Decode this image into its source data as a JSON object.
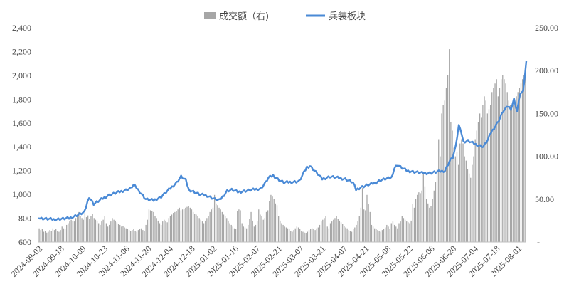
{
  "chart_data": {
    "type": "bar+line",
    "legend": {
      "placement": "top-center",
      "items": [
        {
          "label": "成交额（右)",
          "kind": "bar",
          "color": "#a6a6a6"
        },
        {
          "label": "兵装板块",
          "kind": "line",
          "color": "#4a8ad6"
        }
      ]
    },
    "x_ticks": [
      "2024-09-02",
      "2024-09-18",
      "2024-10-09",
      "2024-10-23",
      "2024-11-06",
      "2024-11-20",
      "2024-12-04",
      "2024-12-18",
      "2025-01-02",
      "2025-01-16",
      "2025-02-07",
      "2025-02-21",
      "2025-03-07",
      "2025-03-21",
      "2025-04-07",
      "2025-04-21",
      "2025-05-08",
      "2025-05-22",
      "2025-06-06",
      "2025-06-20",
      "2025-07-04",
      "2025-07-18",
      "2025-08-01"
    ],
    "y_left": {
      "ticks": [
        "600",
        "800",
        "1,000",
        "1,200",
        "1,400",
        "1,600",
        "1,800",
        "2,000",
        "2,200",
        "2,400"
      ],
      "ylim": [
        600,
        2400
      ]
    },
    "y_right": {
      "ticks": [
        "-",
        "50.00",
        "100.00",
        "150.00",
        "200.00",
        "250.00"
      ],
      "ylim": [
        0,
        250
      ]
    },
    "grid": false,
    "line_series": {
      "name": "兵装板块",
      "anchors": [
        [
          0,
          800
        ],
        [
          10,
          790
        ],
        [
          20,
          800
        ],
        [
          30,
          850
        ],
        [
          33,
          980
        ],
        [
          36,
          920
        ],
        [
          40,
          950
        ],
        [
          45,
          990
        ],
        [
          50,
          1010
        ],
        [
          55,
          1030
        ],
        [
          60,
          1050
        ],
        [
          62,
          1080
        ],
        [
          65,
          1040
        ],
        [
          70,
          960
        ],
        [
          75,
          950
        ],
        [
          80,
          980
        ],
        [
          85,
          1040
        ],
        [
          90,
          1100
        ],
        [
          93,
          1150
        ],
        [
          96,
          1120
        ],
        [
          98,
          1040
        ],
        [
          100,
          1030
        ],
        [
          105,
          1000
        ],
        [
          110,
          990
        ],
        [
          115,
          960
        ],
        [
          118,
          950
        ],
        [
          120,
          980
        ],
        [
          123,
          1030
        ],
        [
          126,
          1040
        ],
        [
          130,
          1020
        ],
        [
          135,
          1030
        ],
        [
          140,
          1040
        ],
        [
          145,
          1050
        ],
        [
          148,
          1100
        ],
        [
          150,
          1140
        ],
        [
          153,
          1160
        ],
        [
          157,
          1120
        ],
        [
          160,
          1100
        ],
        [
          170,
          1110
        ],
        [
          175,
          1230
        ],
        [
          177,
          1240
        ],
        [
          180,
          1200
        ],
        [
          185,
          1130
        ],
        [
          190,
          1150
        ],
        [
          195,
          1140
        ],
        [
          200,
          1130
        ],
        [
          205,
          1100
        ],
        [
          207,
          1040
        ],
        [
          210,
          1060
        ],
        [
          215,
          1080
        ],
        [
          220,
          1100
        ],
        [
          223,
          1120
        ],
        [
          226,
          1130
        ],
        [
          230,
          1140
        ],
        [
          232,
          1220
        ],
        [
          234,
          1250
        ],
        [
          236,
          1230
        ],
        [
          240,
          1200
        ],
        [
          245,
          1190
        ],
        [
          250,
          1180
        ],
        [
          255,
          1180
        ],
        [
          260,
          1190
        ],
        [
          265,
          1200
        ],
        [
          268,
          1280
        ],
        [
          270,
          1310
        ],
        [
          272,
          1400
        ],
        [
          274,
          1580
        ],
        [
          275,
          1560
        ],
        [
          277,
          1440
        ],
        [
          280,
          1450
        ],
        [
          285,
          1420
        ],
        [
          290,
          1400
        ],
        [
          293,
          1460
        ],
        [
          295,
          1520
        ],
        [
          297,
          1560
        ],
        [
          300,
          1620
        ],
        [
          303,
          1700
        ],
        [
          306,
          1740
        ],
        [
          308,
          1720
        ],
        [
          310,
          1800
        ],
        [
          312,
          1700
        ],
        [
          314,
          1850
        ],
        [
          316,
          1860
        ],
        [
          318,
          2120
        ]
      ]
    },
    "bar_series": {
      "name": "成交额（右)",
      "values": [
        16,
        14,
        15,
        12,
        13,
        11,
        12,
        14,
        13,
        16,
        14,
        15,
        13,
        12,
        14,
        18,
        16,
        15,
        20,
        22,
        24,
        26,
        25,
        24,
        28,
        32,
        35,
        30,
        28,
        26,
        34,
        29,
        31,
        27,
        30,
        33,
        28,
        26,
        25,
        22,
        20,
        24,
        26,
        30,
        22,
        18,
        20,
        24,
        28,
        26,
        25,
        23,
        21,
        20,
        18,
        19,
        17,
        16,
        15,
        14,
        13,
        14,
        15,
        13,
        12,
        14,
        15,
        16,
        14,
        13,
        20,
        26,
        38,
        37,
        36,
        35,
        30,
        28,
        25,
        22,
        20,
        24,
        26,
        25,
        23,
        28,
        30,
        32,
        34,
        35,
        36,
        38,
        40,
        37,
        38,
        39,
        40,
        41,
        42,
        40,
        38,
        35,
        33,
        32,
        30,
        28,
        26,
        24,
        22,
        25,
        28,
        30,
        35,
        38,
        40,
        55,
        45,
        43,
        40,
        38,
        35,
        32,
        30,
        28,
        25,
        22,
        20,
        18,
        16,
        15,
        36,
        38,
        37,
        22,
        18,
        17,
        16,
        20,
        27,
        35,
        25,
        18,
        20,
        24,
        38,
        32,
        30,
        26,
        28,
        35,
        37,
        48,
        55,
        53,
        50,
        45,
        43,
        30,
        25,
        22,
        20,
        18,
        17,
        16,
        15,
        13,
        12,
        14,
        16,
        18,
        17,
        15,
        13,
        12,
        11,
        10,
        12,
        14,
        15,
        16,
        15,
        14,
        16,
        17,
        20,
        24,
        26,
        28,
        30,
        18,
        16,
        22,
        24,
        26,
        28,
        30,
        27,
        25,
        23,
        21,
        19,
        17,
        16,
        14,
        13,
        12,
        15,
        17,
        20,
        24,
        30,
        40,
        63,
        38,
        37,
        55,
        44,
        35,
        20,
        18,
        16,
        15,
        14,
        13,
        12,
        14,
        15,
        17,
        20,
        18,
        15,
        22,
        24,
        20,
        18,
        16,
        22,
        24,
        30,
        28,
        26,
        24,
        23,
        22,
        25,
        44,
        40,
        50,
        55,
        58,
        57,
        60,
        80,
        65,
        50,
        45,
        40,
        42,
        50,
        60,
        70,
        85,
        120,
        100,
        150,
        160,
        165,
        180,
        195,
        225,
        140,
        130,
        110,
        100,
        105,
        90,
        115,
        120,
        115,
        100,
        95,
        85,
        80,
        75,
        90,
        100,
        120,
        130,
        140,
        150,
        145,
        160,
        170,
        165,
        150,
        155,
        160,
        175,
        180,
        185,
        190,
        170,
        180,
        190,
        195,
        190,
        185,
        175,
        165,
        160,
        155,
        160,
        165,
        170,
        175,
        180,
        185,
        190,
        195,
        198
      ]
    }
  }
}
